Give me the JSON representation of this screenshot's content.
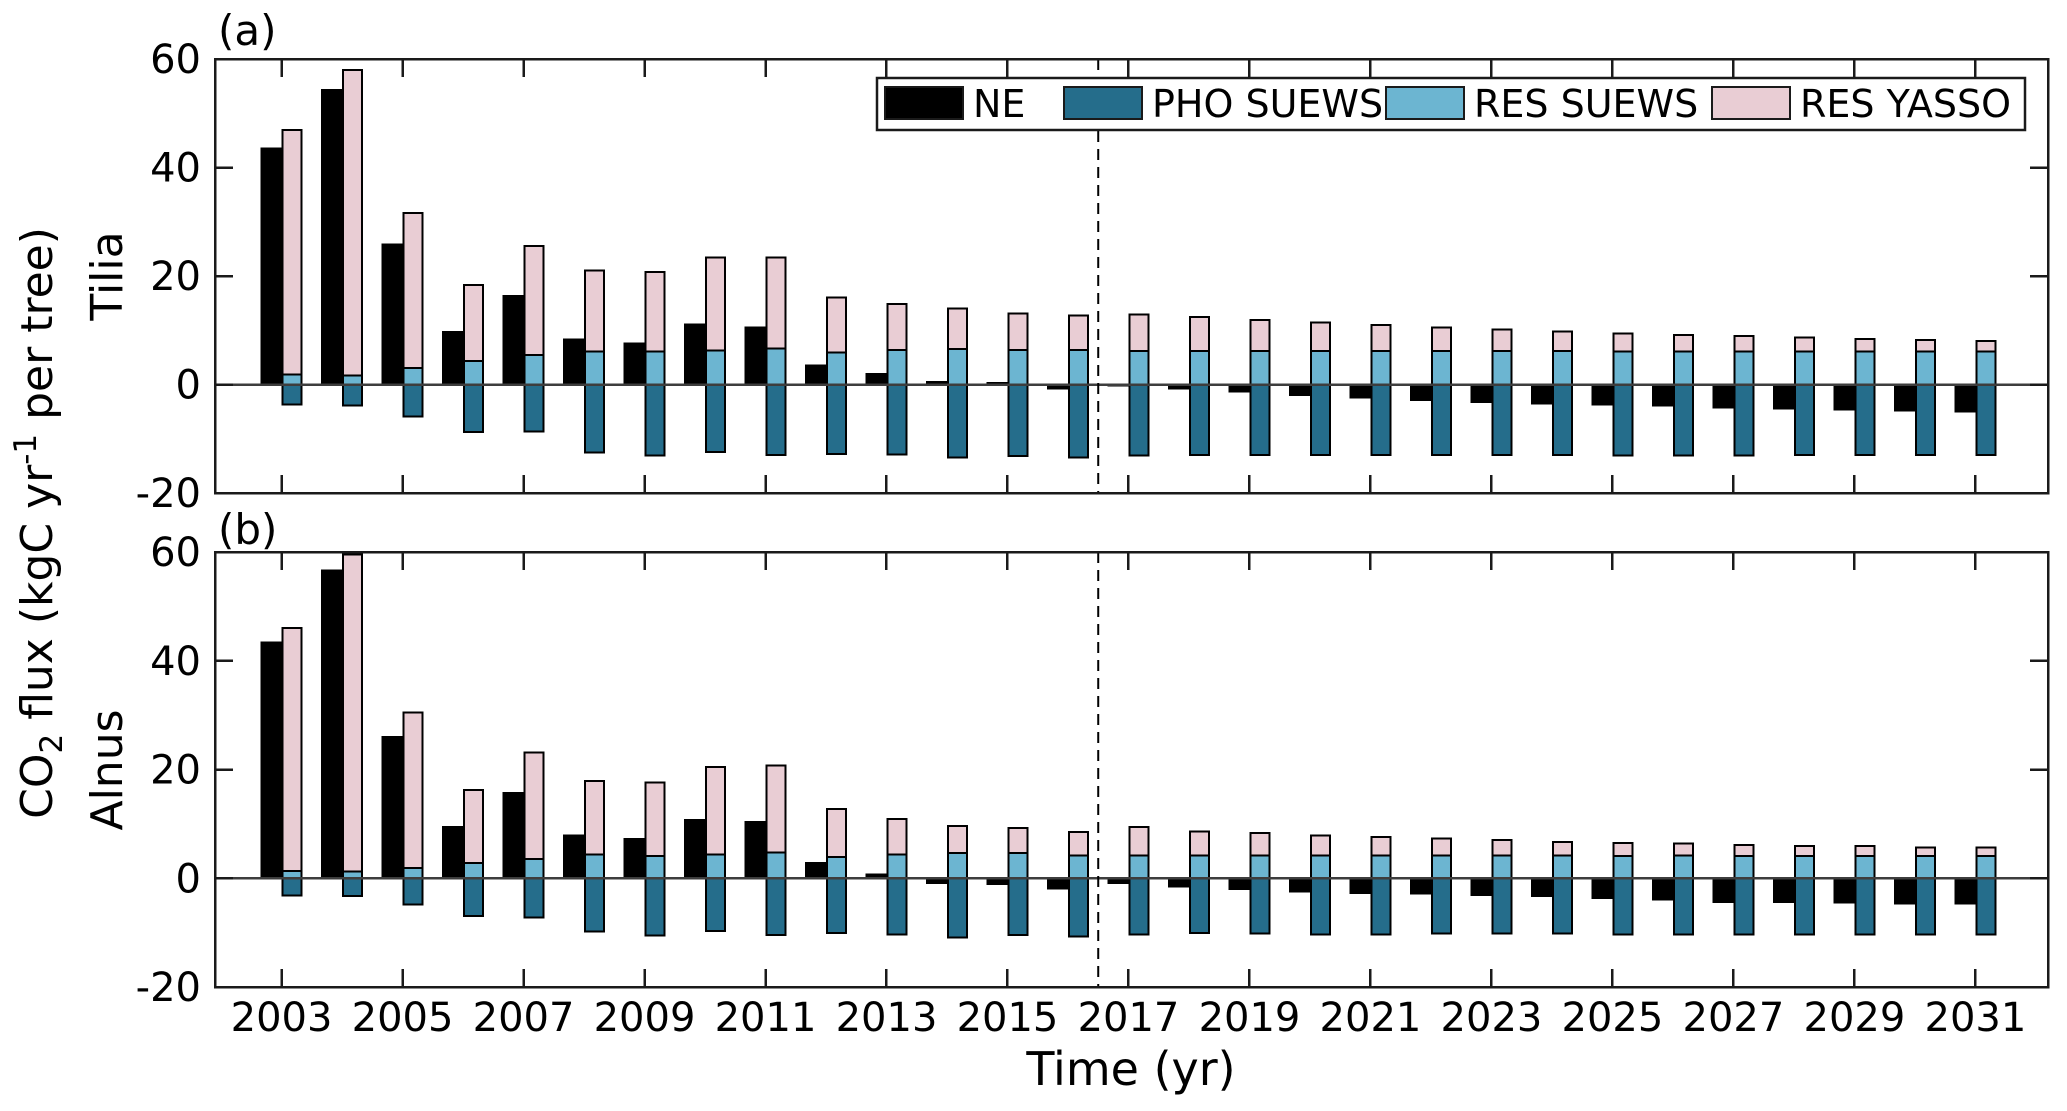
{
  "figure": {
    "panel_a": {
      "letter": "(a)",
      "species": "Tilia"
    },
    "panel_b": {
      "letter": "(b)",
      "species": "Alnus"
    },
    "x_axis_label": "Time (yr)",
    "y_axis_label": {
      "base": "CO",
      "sub": "2",
      "mid": " flux (kgC yr",
      "sup": "-1",
      "end": " per tree)"
    }
  },
  "legend": {
    "position": "top-right inside panel a",
    "entries": [
      {
        "label": "NE",
        "color": "#000000"
      },
      {
        "label": "PHO SUEWS",
        "color": "#256d8b"
      },
      {
        "label": "RES SUEWS",
        "color": "#6cb5d1"
      },
      {
        "label": "RES YASSO",
        "color": "#e9cdd4"
      }
    ]
  },
  "chart_data": [
    {
      "type": "bar",
      "panel": "a",
      "species": "Tilia",
      "ylabel": "CO2 flux (kgC yr-1 per tree)",
      "xlabel": "",
      "ylim": [
        -20,
        60
      ],
      "yticks": [
        -20,
        0,
        20,
        40,
        60
      ],
      "xlim": [
        2001.9,
        2032.2
      ],
      "xticks": [
        2003,
        2005,
        2007,
        2009,
        2011,
        2013,
        2015,
        2017,
        2019,
        2021,
        2023,
        2025,
        2027,
        2029,
        2031
      ],
      "dashed_vline_x": 2016.5,
      "grid": false,
      "bar_layout": "per year: NE is a separate bar left of the year position; right bar stacks RES SUEWS then RES YASSO above zero while PHO SUEWS extends below zero",
      "x": [
        2003,
        2004,
        2005,
        2006,
        2007,
        2008,
        2009,
        2010,
        2011,
        2012,
        2013,
        2014,
        2015,
        2016,
        2017,
        2018,
        2019,
        2020,
        2021,
        2022,
        2023,
        2024,
        2025,
        2026,
        2027,
        2028,
        2029,
        2030,
        2031
      ],
      "series": [
        {
          "name": "NE",
          "color": "#000000",
          "values": [
            43.5,
            54.3,
            25.8,
            9.7,
            16.3,
            8.3,
            7.6,
            11.1,
            10.5,
            3.5,
            1.9,
            0.5,
            0.3,
            -0.7,
            -0.2,
            -0.7,
            -1.3,
            -1.9,
            -2.4,
            -2.9,
            -3.2,
            -3.5,
            -3.7,
            -3.9,
            -4.2,
            -4.4,
            -4.6,
            -4.8,
            -5.0
          ]
        },
        {
          "name": "PHO SUEWS",
          "color": "#256d8b",
          "values": [
            -3.7,
            -3.9,
            -5.9,
            -8.8,
            -8.7,
            -12.5,
            -13.1,
            -12.4,
            -13.0,
            -12.8,
            -12.9,
            -13.5,
            -13.2,
            -13.5,
            -13.1,
            -13.0,
            -13.0,
            -13.0,
            -13.0,
            -13.0,
            -13.0,
            -13.0,
            -13.1,
            -13.1,
            -13.1,
            -13.0,
            -13.0,
            -13.0,
            -13.0
          ]
        },
        {
          "name": "RES SUEWS",
          "color": "#6cb5d1",
          "values": [
            1.8,
            1.7,
            3.0,
            4.3,
            5.4,
            6.1,
            6.1,
            6.3,
            6.6,
            5.9,
            6.4,
            6.5,
            6.4,
            6.4,
            6.2,
            6.2,
            6.2,
            6.2,
            6.2,
            6.2,
            6.2,
            6.2,
            6.1,
            6.1,
            6.1,
            6.1,
            6.1,
            6.1,
            6.1
          ]
        },
        {
          "name": "RES YASSO",
          "color": "#e9cdd4",
          "values": [
            45.1,
            56.3,
            28.6,
            14.0,
            20.1,
            14.9,
            14.6,
            17.1,
            16.8,
            10.1,
            8.4,
            7.5,
            6.7,
            6.3,
            6.7,
            6.2,
            5.7,
            5.2,
            4.8,
            4.3,
            3.9,
            3.6,
            3.3,
            3.0,
            2.8,
            2.6,
            2.3,
            2.1,
            1.9
          ]
        }
      ]
    },
    {
      "type": "bar",
      "panel": "b",
      "species": "Alnus",
      "ylabel": "CO2 flux (kgC yr-1 per tree)",
      "xlabel": "Time (yr)",
      "ylim": [
        -20,
        60
      ],
      "yticks": [
        -20,
        0,
        20,
        40,
        60
      ],
      "xlim": [
        2001.9,
        2032.2
      ],
      "xticks": [
        2003,
        2005,
        2007,
        2009,
        2011,
        2013,
        2015,
        2017,
        2019,
        2021,
        2023,
        2025,
        2027,
        2029,
        2031
      ],
      "dashed_vline_x": 2016.5,
      "grid": false,
      "bar_layout": "per year: NE is a separate bar left of the year position; right bar stacks RES SUEWS then RES YASSO above zero while PHO SUEWS extends below zero",
      "x": [
        2003,
        2004,
        2005,
        2006,
        2007,
        2008,
        2009,
        2010,
        2011,
        2012,
        2013,
        2014,
        2015,
        2016,
        2017,
        2018,
        2019,
        2020,
        2021,
        2022,
        2023,
        2024,
        2025,
        2026,
        2027,
        2028,
        2029,
        2030,
        2031
      ],
      "series": [
        {
          "name": "NE",
          "color": "#000000",
          "values": [
            43.4,
            56.6,
            26.0,
            9.4,
            15.7,
            7.9,
            7.2,
            10.7,
            10.3,
            2.8,
            0.7,
            -0.9,
            -1.1,
            -1.9,
            -0.9,
            -1.5,
            -2.0,
            -2.4,
            -2.7,
            -2.8,
            -3.1,
            -3.3,
            -3.6,
            -3.9,
            -4.4,
            -4.4,
            -4.5,
            -4.6,
            -4.6
          ]
        },
        {
          "name": "PHO SUEWS",
          "color": "#256d8b",
          "values": [
            -3.2,
            -3.3,
            -4.8,
            -6.9,
            -7.2,
            -9.8,
            -10.5,
            -9.7,
            -10.4,
            -10.1,
            -10.3,
            -10.9,
            -10.4,
            -10.7,
            -10.3,
            -10.1,
            -10.2,
            -10.3,
            -10.3,
            -10.2,
            -10.2,
            -10.2,
            -10.3,
            -10.3,
            -10.3,
            -10.3,
            -10.3,
            -10.3,
            -10.3
          ]
        },
        {
          "name": "RES SUEWS",
          "color": "#6cb5d1",
          "values": [
            1.3,
            1.2,
            1.9,
            2.8,
            3.5,
            4.4,
            4.1,
            4.4,
            4.7,
            3.9,
            4.4,
            4.6,
            4.6,
            4.2,
            4.2,
            4.2,
            4.2,
            4.2,
            4.2,
            4.2,
            4.2,
            4.2,
            4.1,
            4.2,
            4.1,
            4.1,
            4.1,
            4.1,
            4.1
          ]
        },
        {
          "name": "RES YASSO",
          "color": "#e9cdd4",
          "values": [
            44.7,
            58.3,
            28.6,
            13.4,
            19.6,
            13.5,
            13.5,
            16.1,
            16.0,
            8.8,
            6.5,
            5.0,
            4.6,
            4.3,
            5.2,
            4.4,
            4.1,
            3.7,
            3.4,
            3.1,
            2.8,
            2.5,
            2.4,
            2.2,
            2.0,
            1.8,
            1.8,
            1.6,
            1.6
          ]
        }
      ]
    }
  ]
}
